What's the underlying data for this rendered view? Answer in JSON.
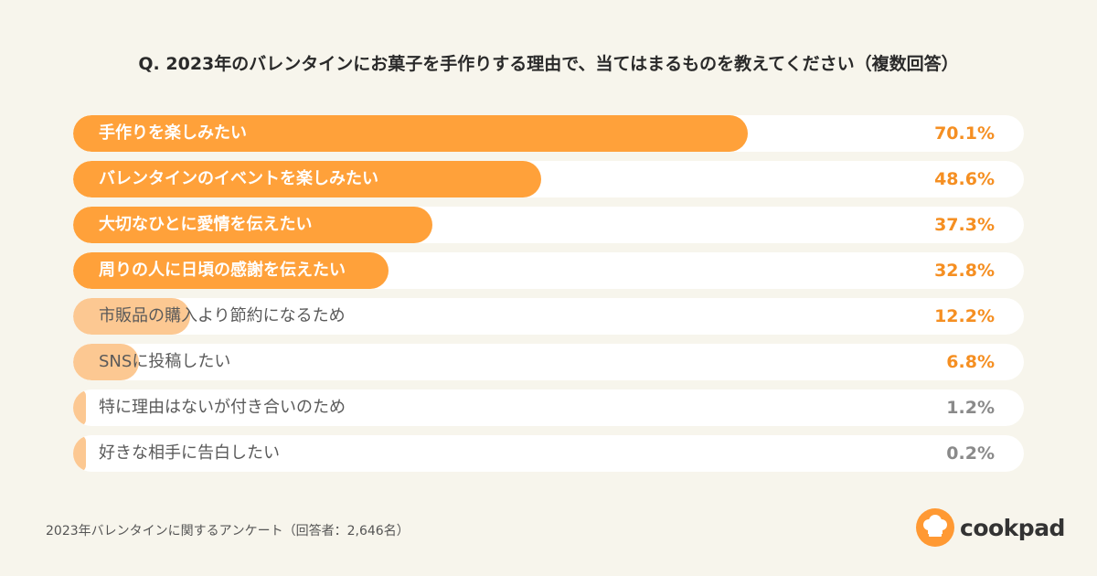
{
  "chart_data": {
    "type": "bar",
    "orientation": "horizontal",
    "title": "Q. 2023年のバレンタインにお菓子を手作りする理由で、当てはまるものを教えてください（複数回答）",
    "categories": [
      "手作りを楽しみたい",
      "バレンタインのイベントを楽しみたい",
      "大切なひとに愛情を伝えたい",
      "周りの人に日頃の感謝を伝えたい",
      "市販品の購入より節約になるため",
      "SNSに投稿したい",
      "特に理由はないが付き合いのため",
      "好きな相手に告白したい"
    ],
    "values": [
      70.1,
      48.6,
      37.3,
      32.8,
      12.2,
      6.8,
      1.2,
      0.2
    ],
    "value_labels": [
      "70.1%",
      "48.6%",
      "37.3%",
      "32.8%",
      "12.2%",
      "6.8%",
      "1.2%",
      "0.2%"
    ],
    "xlim": [
      0,
      100
    ],
    "grid": false,
    "legend": "none",
    "colors": {
      "bar": "#ffa13a",
      "bar_light": "#fcc892",
      "track": "#ffffff",
      "value_highlight": "#f58f22",
      "value_muted": "#8a8a8a",
      "background": "#f7f5ec"
    }
  },
  "footer": "2023年バレンタインに関するアンケート（回答者：2,646名）",
  "logo": {
    "text": "cookpad",
    "icon": "chef-hat-icon",
    "color": "#ff9933"
  }
}
